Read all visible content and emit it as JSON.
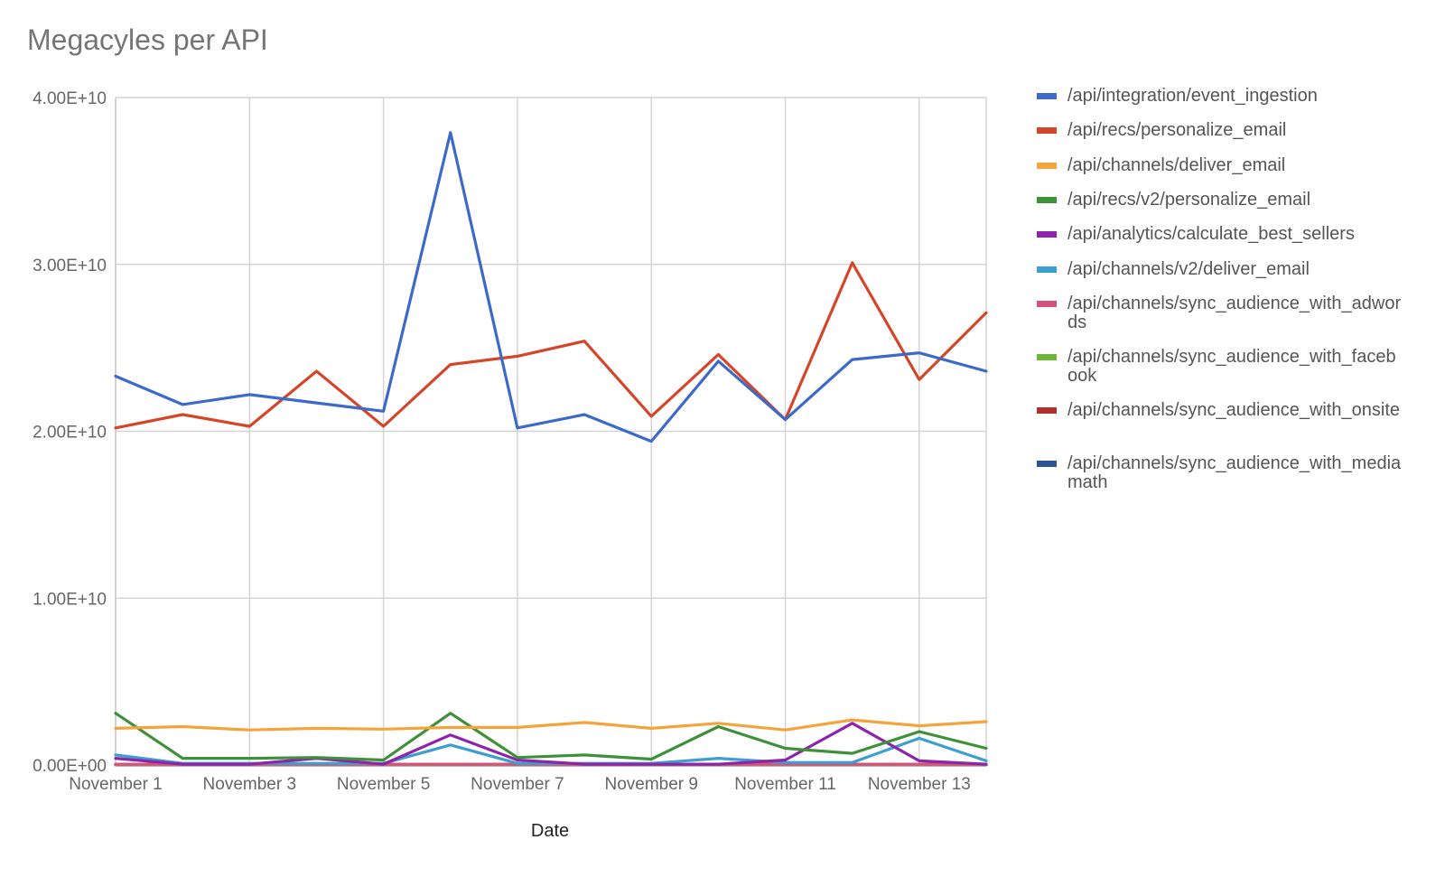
{
  "chart_data": {
    "type": "line",
    "title": "Megacyles per API",
    "xlabel": "Date",
    "ylabel": "",
    "ylim": [
      0,
      40000000000
    ],
    "yticks": [
      0,
      10000000000,
      20000000000,
      30000000000,
      40000000000
    ],
    "ytick_labels": [
      "0.00E+00",
      "1.00E+10",
      "2.00E+10",
      "3.00E+10",
      "4.00E+10"
    ],
    "xticks_shown": [
      "November 1",
      "November 3",
      "November 5",
      "November 7",
      "November 9",
      "November 11",
      "November 13"
    ],
    "x": [
      "November 1",
      "November 2",
      "November 3",
      "November 4",
      "November 5",
      "November 6",
      "November 7",
      "November 8",
      "November 9",
      "November 10",
      "November 11",
      "November 12",
      "November 13",
      "November 14"
    ],
    "grid": true,
    "legend_position": "right",
    "series": [
      {
        "name": "/api/integration/event_ingestion",
        "color": "#3d6ac9",
        "values": [
          23300000000,
          21600000000,
          22200000000,
          21700000000,
          21200000000,
          37900000000,
          20200000000,
          21000000000,
          19400000000,
          24200000000,
          20700000000,
          24300000000,
          24700000000,
          23600000000
        ]
      },
      {
        "name": "/api/recs/personalize_email",
        "color": "#d4462a",
        "values": [
          20200000000,
          21000000000,
          20300000000,
          23600000000,
          20300000000,
          24000000000,
          24500000000,
          25400000000,
          20900000000,
          24600000000,
          20700000000,
          30100000000,
          23100000000,
          27100000000
        ]
      },
      {
        "name": "/api/channels/deliver_email",
        "color": "#f3a43b",
        "values": [
          2200000000,
          2300000000,
          2100000000,
          2200000000,
          2150000000,
          2250000000,
          2250000000,
          2550000000,
          2200000000,
          2500000000,
          2100000000,
          2700000000,
          2350000000,
          2600000000
        ]
      },
      {
        "name": "/api/recs/v2/personalize_email",
        "color": "#3e9138",
        "values": [
          3100000000,
          400000000,
          400000000,
          450000000,
          300000000,
          3100000000,
          450000000,
          600000000,
          350000000,
          2300000000,
          1000000000,
          700000000,
          2000000000,
          1000000000
        ]
      },
      {
        "name": "/api/analytics/calculate_best_sellers",
        "color": "#8e24aa",
        "values": [
          400000000,
          50000000,
          50000000,
          400000000,
          50000000,
          1800000000,
          300000000,
          50000000,
          50000000,
          50000000,
          300000000,
          2500000000,
          250000000,
          50000000
        ]
      },
      {
        "name": "/api/channels/v2/deliver_email",
        "color": "#3d9fd0",
        "values": [
          600000000,
          100000000,
          100000000,
          100000000,
          100000000,
          1200000000,
          100000000,
          100000000,
          100000000,
          400000000,
          150000000,
          150000000,
          1600000000,
          250000000
        ]
      },
      {
        "name": "/api/channels/sync_audience_with_adwords",
        "color": "#d6517d",
        "values": [
          50000000,
          50000000,
          50000000,
          50000000,
          50000000,
          50000000,
          50000000,
          50000000,
          50000000,
          50000000,
          50000000,
          50000000,
          50000000,
          50000000
        ]
      },
      {
        "name": "/api/channels/sync_audience_with_facebook",
        "color": "#6fb73b",
        "values": [
          30000000,
          30000000,
          30000000,
          30000000,
          30000000,
          30000000,
          30000000,
          30000000,
          30000000,
          30000000,
          30000000,
          30000000,
          30000000,
          30000000
        ]
      },
      {
        "name": "/api/channels/sync_audience_with_onsite",
        "color": "#b0322d",
        "values": [
          20000000,
          20000000,
          20000000,
          20000000,
          20000000,
          20000000,
          20000000,
          20000000,
          20000000,
          20000000,
          20000000,
          20000000,
          20000000,
          20000000
        ]
      },
      {
        "name": "/api/channels/sync_audience_with_mediamath",
        "color": "#2c5393",
        "values": [
          10000000,
          10000000,
          10000000,
          10000000,
          10000000,
          10000000,
          10000000,
          10000000,
          10000000,
          10000000,
          10000000,
          10000000,
          10000000,
          10000000
        ]
      }
    ]
  }
}
